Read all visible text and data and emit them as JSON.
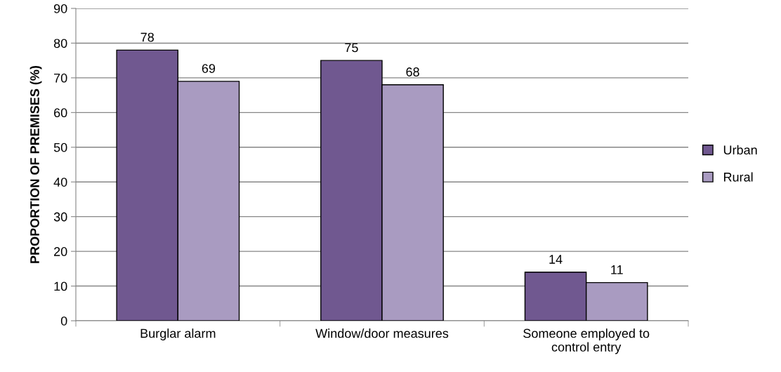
{
  "chart_data": {
    "type": "bar",
    "ylabel": "PROPORTION OF PREMISES (%)",
    "categories": [
      "Burglar alarm",
      "Window/door measures",
      "Someone employed to\ncontrol entry"
    ],
    "series": [
      {
        "name": "Urban",
        "color": "#705890",
        "values": [
          78,
          75,
          14
        ]
      },
      {
        "name": "Rural",
        "color": "#a99bc1",
        "values": [
          69,
          68,
          11
        ]
      }
    ],
    "ylim": [
      0,
      90
    ],
    "yticks": [
      0,
      10,
      20,
      30,
      40,
      50,
      60,
      70,
      80,
      90
    ],
    "grid": "y",
    "legend": "right",
    "data_labels": true
  }
}
